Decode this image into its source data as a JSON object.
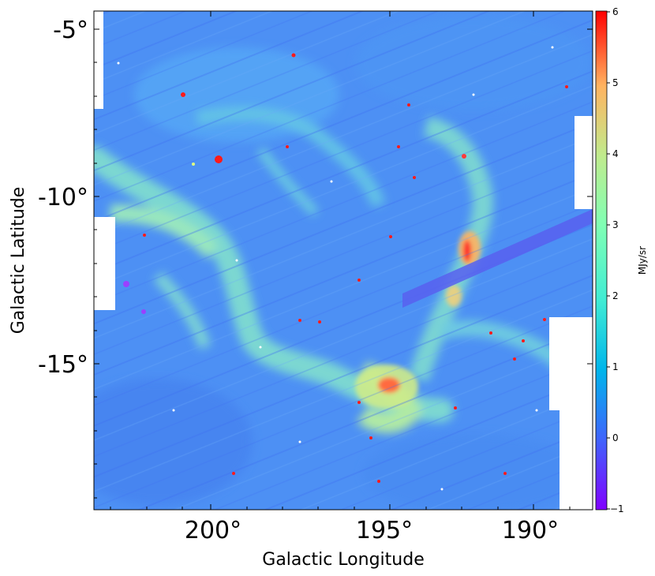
{
  "map": {
    "xlabel": "Galactic Longitude",
    "ylabel": "Galactic Latitude",
    "x_ticks": [
      "200°",
      "195°",
      "190°"
    ],
    "y_ticks": [
      "-5°",
      "-10°",
      "-15°"
    ]
  },
  "colorbar": {
    "label": "MJy/sr",
    "ticks": [
      "6",
      "5",
      "4",
      "3",
      "2",
      "1",
      "0",
      "−1"
    ],
    "range": [
      -1,
      6
    ],
    "colormap": [
      "#8000ff",
      "#4063fc",
      "#00b5eb",
      "#40ecd4",
      "#80ffb4",
      "#c0eb8d",
      "#ffb360",
      "#ff0000"
    ]
  },
  "colors": {
    "background_map": "#4b92f5",
    "filament": "#8ee8c4",
    "hotspot": "#ff1a1a"
  }
}
